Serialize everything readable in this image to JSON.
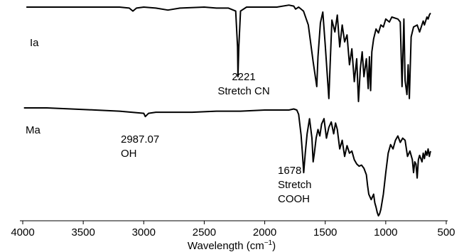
{
  "chart_data": {
    "type": "line",
    "xlabel": "Wavelength (cm",
    "xlabel_sup": "−1",
    "xlabel_end": ")",
    "xlim": [
      4000,
      500
    ],
    "ticks": [
      4000,
      3500,
      3000,
      2500,
      2000,
      1500,
      1000,
      500
    ],
    "tick_labels": [
      "4000",
      "3500",
      "3000",
      "2500",
      "2000",
      "1500",
      "1000",
      "500"
    ],
    "series": [
      {
        "name": "Ia",
        "x": [
          3970,
          3600,
          3200,
          3120,
          3090,
          3060,
          3000,
          2900,
          2800,
          2700,
          2500,
          2400,
          2300,
          2240,
          2225,
          2221,
          2214,
          2200,
          2150,
          2000,
          1900,
          1800,
          1760,
          1745,
          1720,
          1680,
          1640,
          1600,
          1570,
          1560,
          1540,
          1520,
          1500,
          1470,
          1460,
          1445,
          1420,
          1400,
          1380,
          1360,
          1340,
          1320,
          1300,
          1280,
          1260,
          1240,
          1225,
          1210,
          1195,
          1180,
          1160,
          1145,
          1135,
          1125,
          1115,
          1100,
          1080,
          1060,
          1040,
          1020,
          1000,
          970,
          950,
          900,
          880,
          865,
          850,
          840,
          825,
          815,
          805,
          790,
          770,
          740,
          720,
          690,
          680,
          660,
          650,
          640,
          630
        ],
        "y": [
          100,
          100,
          100,
          99,
          96,
          99,
          100,
          99,
          97,
          99,
          100,
          99,
          99,
          96,
          60,
          30,
          60,
          96,
          100,
          100,
          100,
          102,
          101,
          98,
          100,
          96,
          82,
          45,
          20,
          50,
          84,
          95,
          62,
          8,
          40,
          87,
          75,
          92,
          60,
          82,
          65,
          72,
          42,
          58,
          25,
          48,
          5,
          38,
          55,
          30,
          48,
          18,
          50,
          16,
          55,
          68,
          78,
          74,
          82,
          80,
          88,
          85,
          90,
          88,
          85,
          20,
          88,
          26,
          12,
          42,
          8,
          70,
          80,
          82,
          75,
          86,
          82,
          90,
          88,
          92,
          94
        ]
      },
      {
        "name": "Ma",
        "x": [
          3990,
          3800,
          3600,
          3400,
          3200,
          3100,
          3000,
          2987,
          2960,
          2900,
          2800,
          2600,
          2400,
          2200,
          2000,
          1900,
          1800,
          1760,
          1735,
          1720,
          1700,
          1690,
          1678,
          1665,
          1650,
          1630,
          1610,
          1600,
          1590,
          1575,
          1560,
          1545,
          1530,
          1510,
          1490,
          1470,
          1450,
          1430,
          1415,
          1400,
          1380,
          1360,
          1340,
          1320,
          1300,
          1280,
          1260,
          1240,
          1220,
          1200,
          1180,
          1160,
          1150,
          1140,
          1120,
          1100,
          1090,
          1080,
          1070,
          1060,
          1050,
          1040,
          1020,
          1000,
          980,
          960,
          940,
          920,
          900,
          880,
          860,
          840,
          820,
          800,
          780,
          770,
          760,
          750,
          740,
          730,
          720,
          700,
          690,
          680,
          670,
          660,
          650,
          640,
          630
        ],
        "y": [
          100,
          100,
          99,
          98,
          97,
          96,
          95,
          92,
          95,
          96,
          96,
          96,
          97,
          97,
          98,
          98,
          98,
          99,
          98,
          94,
          75,
          60,
          40,
          58,
          76,
          90,
          72,
          50,
          58,
          72,
          80,
          74,
          85,
          90,
          72,
          82,
          87,
          76,
          86,
          80,
          62,
          70,
          55,
          65,
          58,
          60,
          52,
          48,
          46,
          47,
          44,
          38,
          28,
          20,
          15,
          20,
          12,
          8,
          3,
          0,
          2,
          6,
          20,
          40,
          58,
          66,
          62,
          70,
          74,
          68,
          72,
          70,
          55,
          60,
          52,
          40,
          50,
          48,
          35,
          52,
          56,
          50,
          58,
          53,
          60,
          56,
          62,
          55,
          60
        ]
      }
    ],
    "annotations": [
      {
        "lines": [
          "2221",
          "Stretch CN"
        ]
      },
      {
        "lines": [
          "2987.07",
          "OH"
        ]
      },
      {
        "lines": [
          "1678",
          "Stretch",
          "COOH"
        ]
      }
    ],
    "series_labels": [
      "Ia",
      "Ma"
    ]
  }
}
